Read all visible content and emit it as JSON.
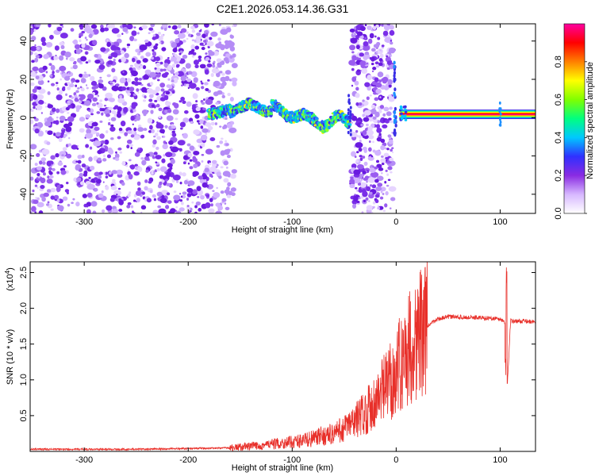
{
  "title": "C2E1.2026.053.14.36.G31",
  "chart_data": [
    {
      "type": "heatmap",
      "xlabel": "Height of straight line (km)",
      "ylabel": "Frequency (Hz)",
      "xlim": [
        -352,
        134
      ],
      "ylim": [
        -50,
        49
      ],
      "xticks": [
        -300,
        -200,
        -100,
        0,
        100
      ],
      "xtick_labels": [
        "-300",
        "-200",
        "-100",
        "0",
        "100"
      ],
      "yticks": [
        -40,
        -20,
        0,
        20,
        40
      ],
      "ytick_labels": [
        "-40",
        "-20",
        "0",
        "20",
        "40"
      ],
      "colorbar": {
        "label": "Normalized spectral amplitude",
        "range": [
          0,
          1
        ],
        "ticks": [
          0.0,
          0.2,
          0.4,
          0.6,
          0.8
        ],
        "tick_labels": [
          "0.0",
          "0.2",
          "0.4",
          "0.6",
          "0.8"
        ],
        "colormap": [
          "#ffffff",
          "#d7b8ff",
          "#8a2be2",
          "#3030ff",
          "#00c8ff",
          "#00ff80",
          "#80ff00",
          "#ffff00",
          "#ff8000",
          "#ff0000",
          "#ff00a0"
        ]
      },
      "regions": [
        {
          "x": [
            -352,
            -155
          ],
          "y": [
            -50,
            49
          ],
          "pattern": "dense purple speckle noise",
          "amplitude": 0.15
        },
        {
          "x": [
            -180,
            -45
          ],
          "y": [
            -8,
            12
          ],
          "pattern": "wavering signal trace (blue/green)",
          "amplitude": 0.45
        },
        {
          "x": [
            -43,
            -3
          ],
          "y": [
            -50,
            49
          ],
          "pattern": "purple speckle noise band",
          "amplitude": 0.12
        },
        {
          "x": [
            3,
            134
          ],
          "y": [
            0,
            3
          ],
          "pattern": "steady multicolor signal line",
          "amplitude": 0.95
        }
      ],
      "grid": false
    },
    {
      "type": "line",
      "xlabel": "Height of straight line (km)",
      "ylabel": "SNR (10 * v/v)",
      "y_multiplier_label": "(x10",
      "y_multiplier_exponent": "4",
      "y_multiplier_close": ")",
      "xlim": [
        -352,
        134
      ],
      "ylim": [
        0,
        2.65
      ],
      "xticks": [
        -300,
        -200,
        -100,
        0,
        100
      ],
      "xtick_labels": [
        "-300",
        "-200",
        "-100",
        "0",
        "100"
      ],
      "yticks": [
        0.5,
        1.0,
        1.5,
        2.0,
        2.5
      ],
      "ytick_labels": [
        "0.5",
        "1.0",
        "1.5",
        "2.0",
        "2.5"
      ],
      "series": [
        {
          "color": "#e8302a",
          "x": [
            -352,
            -300,
            -250,
            -200,
            -160,
            -140,
            -120,
            -100,
            -80,
            -60,
            -50,
            -40,
            -30,
            -20,
            -10,
            0,
            10,
            20,
            30,
            40,
            50,
            60,
            70,
            80,
            90,
            100,
            105,
            106,
            107,
            110,
            120,
            134
          ],
          "y": [
            0.03,
            0.03,
            0.03,
            0.04,
            0.05,
            0.07,
            0.1,
            0.13,
            0.18,
            0.25,
            0.32,
            0.42,
            0.55,
            0.7,
            0.9,
            1.1,
            1.4,
            1.6,
            1.75,
            1.85,
            1.88,
            1.88,
            1.87,
            1.87,
            1.86,
            1.85,
            1.8,
            2.65,
            0.95,
            1.82,
            1.82,
            1.81
          ]
        }
      ],
      "grid": false
    }
  ]
}
